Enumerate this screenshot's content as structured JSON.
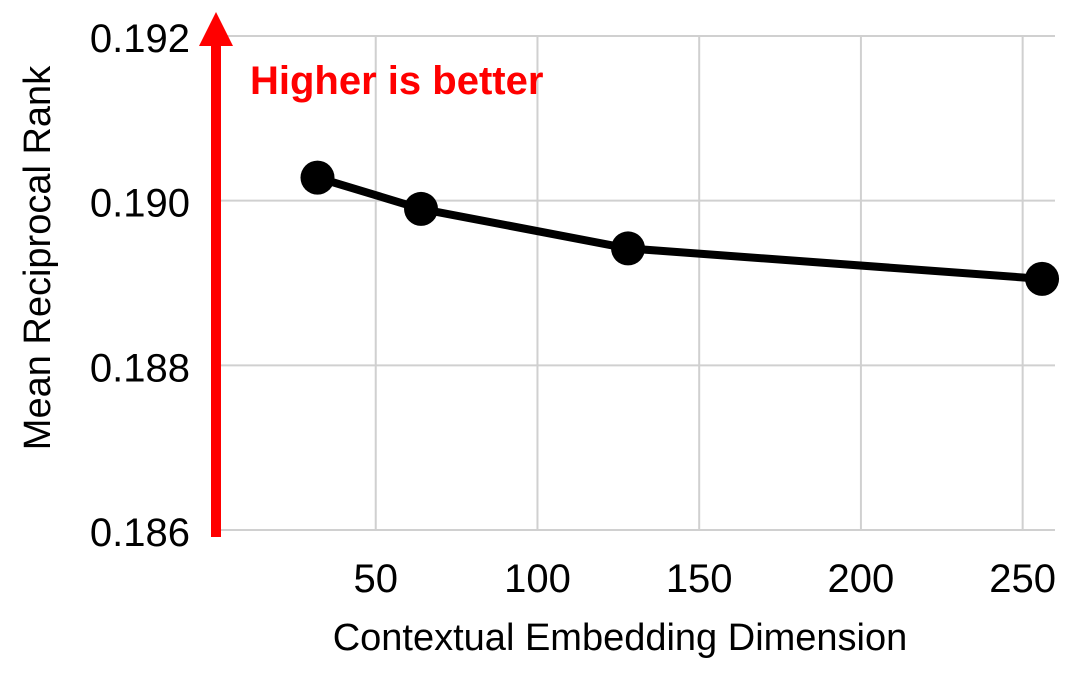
{
  "chart_data": {
    "type": "line",
    "xlabel": "Contextual Embedding Dimension",
    "ylabel": "Mean Reciprocal Rank",
    "annotation": "Higher is better",
    "x": [
      32,
      64,
      128,
      256
    ],
    "series": [
      {
        "values": [
          0.19028,
          0.1899,
          0.18942,
          0.18905
        ]
      }
    ],
    "xlim": [
      0,
      260
    ],
    "ylim": [
      0.186,
      0.192
    ],
    "xticks": [
      50,
      100,
      150,
      200,
      250
    ],
    "yticks": [
      0.186,
      0.188,
      0.19,
      0.192
    ],
    "ytick_labels": [
      "0.186",
      "0.188",
      "0.190",
      "0.192"
    ],
    "grid": true,
    "legend": "none",
    "colors": {
      "line": "#000000",
      "grid": "#d0d0d0",
      "arrow": "#ff0000",
      "annotation": "#ff0000",
      "text": "#000000"
    }
  }
}
